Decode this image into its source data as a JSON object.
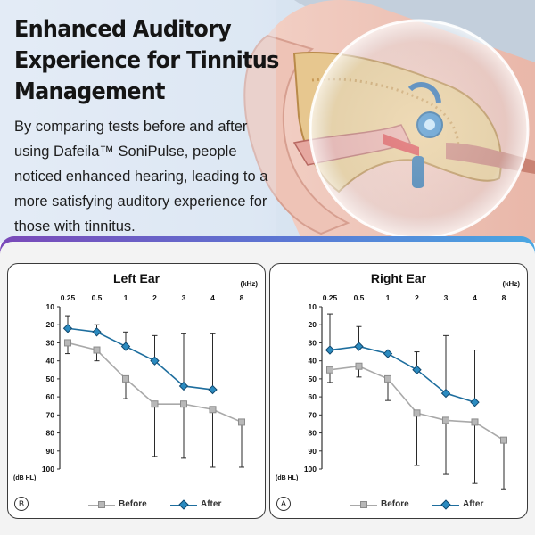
{
  "hero": {
    "title_lines": [
      "Enhanced Auditory",
      "Experience for Tinnitus",
      "Management"
    ],
    "body": "By comparing tests before and after using Dafeila™ SoniPulse, people noticed enhanced hearing, leading to a more satisfying auditory experience for those with tinnitus."
  },
  "colors": {
    "before_series": "#a9a9a9",
    "after_series": "#1e6e9e",
    "after_marker": "#2b8bc0",
    "band_gradient": [
      "#7a49b9",
      "#4aa7e2"
    ]
  },
  "chart_data": [
    {
      "type": "line",
      "title": "Left Ear",
      "badge": "B",
      "x_unit": "(kHz)",
      "ylabel": "(dB HL)",
      "x": [
        "0.25",
        "0.5",
        "1",
        "2",
        "3",
        "4",
        "8"
      ],
      "y_ticks": [
        10,
        20,
        30,
        40,
        50,
        60,
        70,
        80,
        90,
        100
      ],
      "ylim": [
        10,
        100
      ],
      "y_inverted": true,
      "grid": false,
      "legend": "bottom",
      "series": [
        {
          "name": "Before",
          "marker": "square",
          "values": [
            30,
            34,
            50,
            64,
            64,
            67,
            74
          ],
          "error_low": [
            36,
            40,
            61,
            93,
            94,
            99,
            99
          ],
          "error_high": [
            null,
            null,
            null,
            null,
            null,
            null,
            null
          ]
        },
        {
          "name": "After",
          "marker": "diamond",
          "values": [
            22,
            24,
            32,
            40,
            54,
            56,
            null
          ],
          "error_low": [
            null,
            null,
            null,
            null,
            null,
            null,
            null
          ],
          "error_high": [
            15,
            20,
            24,
            26,
            25,
            25,
            null
          ]
        }
      ]
    },
    {
      "type": "line",
      "title": "Right Ear",
      "badge": "A",
      "x_unit": "(kHz)",
      "ylabel": "(dB HL)",
      "x": [
        "0.25",
        "0.5",
        "1",
        "2",
        "3",
        "4",
        "8"
      ],
      "y_ticks": [
        10,
        20,
        30,
        40,
        50,
        60,
        70,
        80,
        90,
        100
      ],
      "ylim": [
        10,
        100
      ],
      "y_inverted": true,
      "grid": false,
      "legend": "bottom",
      "series": [
        {
          "name": "Before",
          "marker": "square",
          "values": [
            45,
            43,
            50,
            69,
            73,
            74,
            84
          ],
          "error_low": [
            52,
            49,
            62,
            98,
            103,
            108,
            111
          ],
          "error_high": [
            null,
            null,
            null,
            null,
            null,
            null,
            null
          ]
        },
        {
          "name": "After",
          "marker": "diamond",
          "values": [
            34,
            32,
            36,
            45,
            58,
            63,
            null
          ],
          "error_low": [
            null,
            null,
            null,
            null,
            null,
            null,
            null
          ],
          "error_high": [
            14,
            21,
            34,
            35,
            26,
            34,
            null
          ]
        }
      ]
    }
  ]
}
